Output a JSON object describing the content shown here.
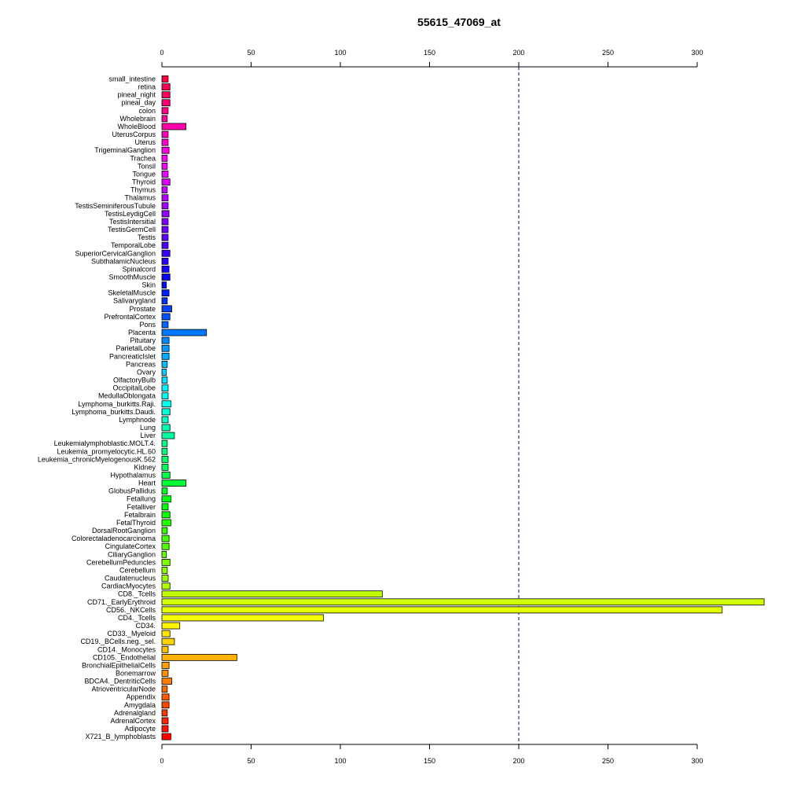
{
  "chart_data": {
    "type": "bar",
    "orientation": "horizontal",
    "title": "55615_47069_at",
    "xlabel": "",
    "ylabel": "",
    "xlim": [
      0,
      340
    ],
    "x_ticks": [
      0,
      50,
      100,
      150,
      200,
      250,
      300
    ],
    "axes": [
      "top",
      "bottom"
    ],
    "reference_line": {
      "value": 200,
      "style": "dashed",
      "color": "#00008b"
    },
    "grid": false,
    "legend": "none",
    "categories": [
      "small_intestine",
      "retina",
      "pineal_night",
      "pineal_day",
      "colon",
      "Wholebrain",
      "WholeBlood",
      "UterusCorpus",
      "Uterus",
      "TrigeminalGanglion",
      "Trachea",
      "Tonsil",
      "Tongue",
      "Thyroid",
      "Thymus",
      "Thalamus",
      "TestisSeminiferousTubule",
      "TestisLeydigCell",
      "TestisIntersitial",
      "TestisGermCell",
      "Testis",
      "TemporalLobe",
      "SuperiorCervicalGanglion",
      "SubthalamicNucleus",
      "Spinalcord",
      "SmoothMuscle",
      "Skin",
      "SkeletalMuscle",
      "Salivarygland",
      "Prostate",
      "PrefrontalCortex",
      "Pons",
      "Placenta",
      "Pituitary",
      "ParietalLobe",
      "PancreaticIslet",
      "Pancreas",
      "Ovary",
      "OlfactoryBulb",
      "OccipitalLobe",
      "MedullaOblongata",
      "Lymphoma_burkitts.Raji.",
      "Lymphoma_burkitts.Daudi.",
      "Lymphnode",
      "Lung",
      "Liver",
      "Leukemialymphoblastic.MOLT.4.",
      "Leukemia_promyelocytic.HL.60",
      "Leukemia_chronicMyelogenousK.562",
      "Kidney",
      "Hypothalamus",
      "Heart",
      "GlobusPallidus",
      "Fetallung",
      "Fetalliver",
      "Fetalbrain",
      "FetalThyroid",
      "DorsalRootGanglion",
      "Colorectaladenocarcinoma",
      "CingulateCortex",
      "CiliaryGanglion",
      "CerebellumPeduncles",
      "Cerebellum",
      "Caudatenucleus",
      "CardiacMyocytes",
      "CD8._Tcells",
      "CD71._EarlyErythroid",
      "CD56._NKCells",
      "CD4._Tcells",
      "CD34.",
      "CD33._Myeloid",
      "CD19._BCells.neg._sel.",
      "CD14._Monocytes",
      "CD105._Endothelial",
      "BronchialEpithelialCells",
      "Bonemarrow",
      "BDCA4._DentriticCells",
      "AtrioventricularNode",
      "Appendix",
      "Amygdala",
      "Adrenalgland",
      "AdrenalCortex",
      "Adipocyte",
      "X721_B_lymphoblasts"
    ],
    "values": [
      3.5,
      4.5,
      4.5,
      4.5,
      3.5,
      3,
      13.5,
      3.5,
      3.5,
      4,
      3,
      3,
      3.5,
      4.5,
      3,
      3.5,
      3.5,
      4,
      3.5,
      3.5,
      3.5,
      3.5,
      4.5,
      3.5,
      4,
      4.5,
      2.5,
      4,
      3,
      5.5,
      4.5,
      3.5,
      25,
      4,
      4,
      4,
      3,
      2.5,
      3,
      3.5,
      3.5,
      5,
      4.5,
      3.5,
      4.5,
      7,
      3,
      3,
      3.5,
      3.5,
      4.5,
      13.5,
      3,
      5,
      3.5,
      4.5,
      5,
      3,
      4,
      4,
      2.5,
      4.5,
      3,
      3.5,
      4.5,
      123.5,
      337.5,
      314,
      90.5,
      10,
      4.5,
      7,
      3.5,
      42,
      4,
      3.5,
      5.5,
      3,
      4,
      4,
      3,
      3.5,
      3.5,
      5
    ]
  }
}
